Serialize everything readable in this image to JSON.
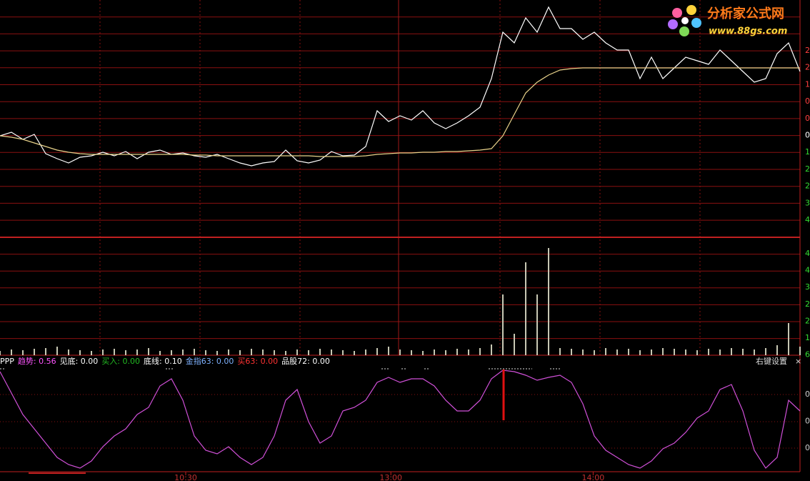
{
  "chart_data": [
    {
      "type": "line",
      "xlim": [
        0,
        70
      ],
      "series": [
        {
          "color": "#ffffff",
          "values": [
            142,
            147,
            137,
            144,
            117,
            110,
            104,
            112,
            114,
            119,
            114,
            120,
            110,
            119,
            122,
            116,
            118,
            114,
            112,
            116,
            110,
            104,
            100,
            104,
            106,
            122,
            107,
            104,
            108,
            120,
            114,
            115,
            127,
            177,
            162,
            170,
            164,
            177,
            160,
            152,
            160,
            170,
            182,
            222,
            287,
            272,
            307,
            287,
            322,
            292,
            292,
            277,
            287,
            272,
            262,
            262,
            222,
            252,
            222,
            237,
            252,
            247,
            242,
            262,
            247,
            232,
            217,
            222,
            257,
            272,
            232
          ]
        },
        {
          "color": "#e8d28a",
          "values": [
            142,
            140,
            137,
            132,
            127,
            122,
            119,
            117,
            116,
            116,
            116,
            116,
            116,
            116,
            116,
            116,
            116,
            115,
            115,
            114,
            114,
            114,
            114,
            114,
            114,
            114,
            114,
            114,
            113,
            113,
            113,
            113,
            114,
            116,
            117,
            118,
            118,
            119,
            119,
            120,
            120,
            121,
            122,
            124,
            142,
            172,
            202,
            217,
            227,
            234,
            236,
            237,
            237,
            237,
            237,
            237,
            237,
            237,
            237,
            237,
            237,
            237,
            237,
            237,
            237,
            237,
            237,
            237,
            237,
            237,
            237
          ]
        }
      ],
      "right_labels": [
        "2",
        "2",
        "1",
        "0",
        "0",
        "0",
        "1",
        "2",
        "2",
        "3",
        "4"
      ]
    },
    {
      "type": "bar",
      "xlim": [
        0,
        70
      ],
      "color": "#c8c8b4",
      "values": [
        6,
        8,
        7,
        9,
        10,
        12,
        8,
        7,
        6,
        8,
        9,
        7,
        8,
        10,
        6,
        7,
        8,
        9,
        7,
        6,
        8,
        7,
        9,
        8,
        7,
        6,
        8,
        7,
        9,
        8,
        7,
        6,
        8,
        10,
        12,
        8,
        7,
        6,
        8,
        7,
        9,
        8,
        10,
        15,
        85,
        30,
        130,
        85,
        150,
        10,
        9,
        8,
        7,
        10,
        8,
        9,
        7,
        8,
        10,
        9,
        8,
        7,
        9,
        8,
        10,
        9,
        8,
        10,
        14,
        45,
        12
      ],
      "right_labels": [
        "4",
        "4",
        "3",
        "2",
        "2",
        "1",
        "6"
      ]
    },
    {
      "type": "line",
      "xlim": [
        0,
        70
      ],
      "ylim": [
        0,
        150
      ],
      "header": [
        {
          "text": "PPP",
          "color": "#ffffff"
        },
        {
          "text": "趋势: 0.56",
          "color": "#ff55ff"
        },
        {
          "text": "见底: 0.00",
          "color": "#ffffff"
        },
        {
          "text": "买入: 0.00",
          "color": "#22bb22"
        },
        {
          "text": "底线: 0.10",
          "color": "#ffffff"
        },
        {
          "text": "金指63: 0.00",
          "color": "#7fb2ff"
        },
        {
          "text": "买63: 0.00",
          "color": "#ff3333"
        },
        {
          "text": "品股72: 0.00",
          "color": "#ffffff"
        }
      ],
      "settings_label": "右键设置",
      "close_label": "×",
      "series": [
        {
          "color": "#d050d8",
          "values": [
            140,
            110,
            80,
            60,
            40,
            20,
            10,
            5,
            15,
            35,
            50,
            60,
            80,
            90,
            120,
            130,
            100,
            50,
            30,
            25,
            35,
            20,
            10,
            20,
            50,
            100,
            115,
            70,
            40,
            50,
            85,
            90,
            100,
            125,
            132,
            125,
            130,
            130,
            120,
            100,
            85,
            85,
            100,
            130,
            142,
            140,
            135,
            128,
            132,
            135,
            125,
            95,
            50,
            30,
            20,
            10,
            5,
            15,
            32,
            40,
            55,
            75,
            85,
            115,
            122,
            85,
            30,
            5,
            20,
            100,
            85
          ]
        }
      ],
      "xticks": [
        {
          "value": 16.25,
          "label": "10:30"
        },
        {
          "value": 34.2,
          "label": "13:00"
        },
        {
          "value": 51.9,
          "label": "14:00"
        }
      ],
      "right_labels": [
        "0",
        "0",
        "0"
      ]
    }
  ],
  "logo": {
    "title": "分析家公式网",
    "url": "www.88gs.com"
  }
}
